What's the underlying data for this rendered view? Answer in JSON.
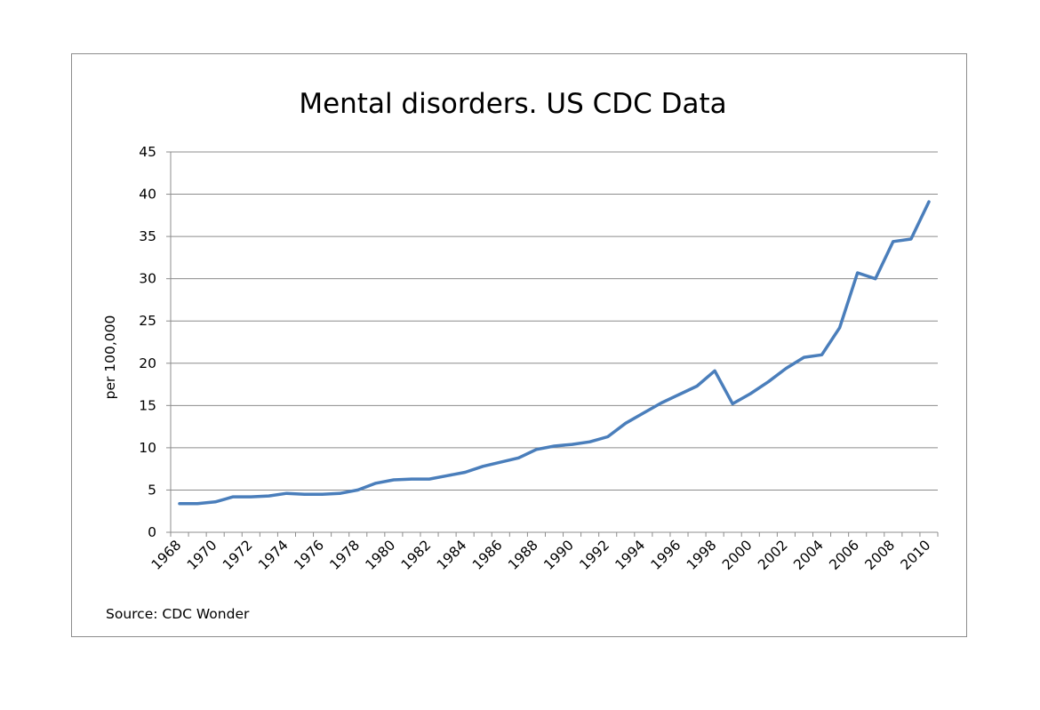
{
  "chart_data": {
    "type": "line",
    "title": "Mental disorders. US CDC Data",
    "xlabel": "",
    "ylabel": "per 100,000",
    "ylim": [
      0,
      45
    ],
    "yticks": [
      "0",
      "5",
      "10",
      "15",
      "20",
      "25",
      "30",
      "35",
      "40",
      "45"
    ],
    "xtick_labels": [
      "1968",
      "1970",
      "1972",
      "1974",
      "1976",
      "1978",
      "1980",
      "1982",
      "1984",
      "1986",
      "1988",
      "1990",
      "1992",
      "1994",
      "1996",
      "1998",
      "2000",
      "2002",
      "2004",
      "2006",
      "2008",
      "2010"
    ],
    "grid": true,
    "legend": "none",
    "source": "Source:  CDC Wonder",
    "line_color": "#4a7ebb",
    "series": [
      {
        "x": [
          1968,
          1969,
          1970,
          1971,
          1972,
          1973,
          1974,
          1975,
          1976,
          1977,
          1978,
          1979,
          1980,
          1981,
          1982,
          1983,
          1984,
          1985,
          1986,
          1987,
          1988,
          1989,
          1990,
          1991,
          1992,
          1993,
          1994,
          1995,
          1996,
          1997,
          1998,
          1999,
          2000,
          2001,
          2002,
          2003,
          2004,
          2005,
          2006,
          2007,
          2008,
          2009,
          2010
        ],
        "values": [
          3.4,
          3.4,
          3.6,
          4.2,
          4.2,
          4.3,
          4.6,
          4.5,
          4.5,
          4.6,
          5.0,
          5.8,
          6.2,
          6.3,
          6.3,
          6.7,
          7.1,
          7.8,
          8.3,
          8.8,
          9.8,
          10.2,
          10.4,
          10.7,
          11.3,
          12.9,
          14.1,
          15.3,
          16.3,
          17.3,
          19.1,
          15.2,
          16.4,
          17.8,
          19.4,
          20.7,
          21.0,
          24.2,
          30.7,
          30.0,
          34.4,
          34.7,
          39.1
        ]
      }
    ]
  }
}
